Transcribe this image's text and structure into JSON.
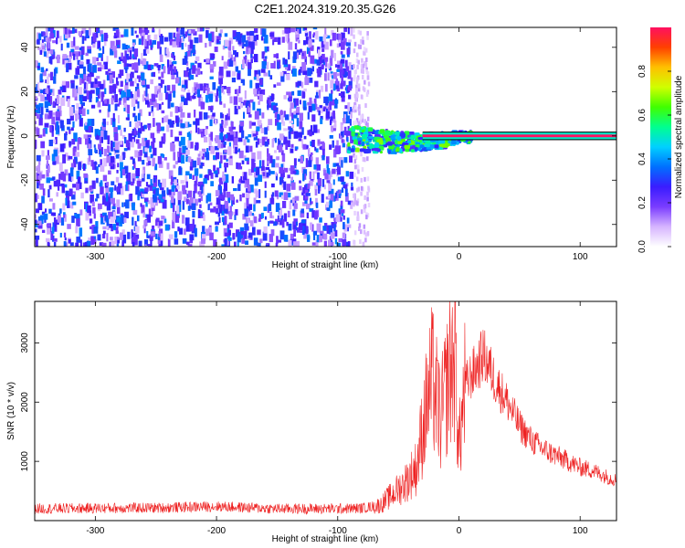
{
  "title": "C2E1.2024.319.20.35.G26",
  "chart_data": [
    {
      "type": "heatmap",
      "xlabel": "Height of straight line (km)",
      "ylabel": "Frequency (Hz)",
      "xlim": [
        -350,
        130
      ],
      "ylim": [
        -50,
        49
      ],
      "xticks": [
        -300,
        -200,
        -100,
        0,
        100
      ],
      "yticks": [
        -40,
        -20,
        0,
        20,
        40
      ],
      "colorbar": {
        "label": "Normalized spectral amplitude",
        "range": [
          0,
          1
        ],
        "ticks": [
          0.0,
          0.2,
          0.4,
          0.6,
          0.8
        ],
        "colors": [
          "#ffffff",
          "#d6b4ff",
          "#7a3cff",
          "#3a1cff",
          "#0070ff",
          "#00d0ff",
          "#00ff90",
          "#40ff00",
          "#d0ff00",
          "#ffc000",
          "#ff4000",
          "#ff1060"
        ]
      },
      "regions": [
        {
          "name": "noise",
          "x": [
            -350,
            -88
          ],
          "y": [
            -50,
            49
          ],
          "amplitude": 0.35
        },
        {
          "name": "fade",
          "x": [
            -88,
            -75
          ],
          "y": [
            -50,
            49
          ],
          "amplitude": 0.08
        },
        {
          "name": "emerging signal",
          "x": [
            -92,
            10
          ],
          "y": [
            -7,
            5
          ],
          "amplitude": 0.6
        },
        {
          "name": "carrier line",
          "x": [
            -30,
            130
          ],
          "y": [
            -1.5,
            1.5
          ],
          "amplitude": 1.0
        }
      ]
    },
    {
      "type": "line",
      "xlabel": "Height of straight line (km)",
      "ylabel": "SNR (10 * v/v)",
      "xlim": [
        -350,
        130
      ],
      "ylim": [
        0,
        3700
      ],
      "xticks": [
        -300,
        -200,
        -100,
        0,
        100
      ],
      "yticks": [
        1000,
        2000,
        3000
      ],
      "series": [
        {
          "color": "#ee2222",
          "x": [
            -350,
            -300,
            -250,
            -200,
            -150,
            -100,
            -80,
            -65,
            -55,
            -45,
            -35,
            -28,
            -22,
            -15,
            -8,
            -3,
            0,
            5,
            10,
            15,
            20,
            25,
            30,
            40,
            50,
            60,
            70,
            80,
            90,
            100,
            110,
            120,
            130
          ],
          "y": [
            200,
            210,
            215,
            240,
            200,
            200,
            210,
            260,
            440,
            620,
            900,
            1800,
            2400,
            1700,
            2500,
            2800,
            1200,
            2250,
            2450,
            2600,
            2800,
            2600,
            2350,
            2000,
            1600,
            1350,
            1200,
            1100,
            1000,
            900,
            850,
            760,
            680
          ]
        }
      ]
    }
  ]
}
